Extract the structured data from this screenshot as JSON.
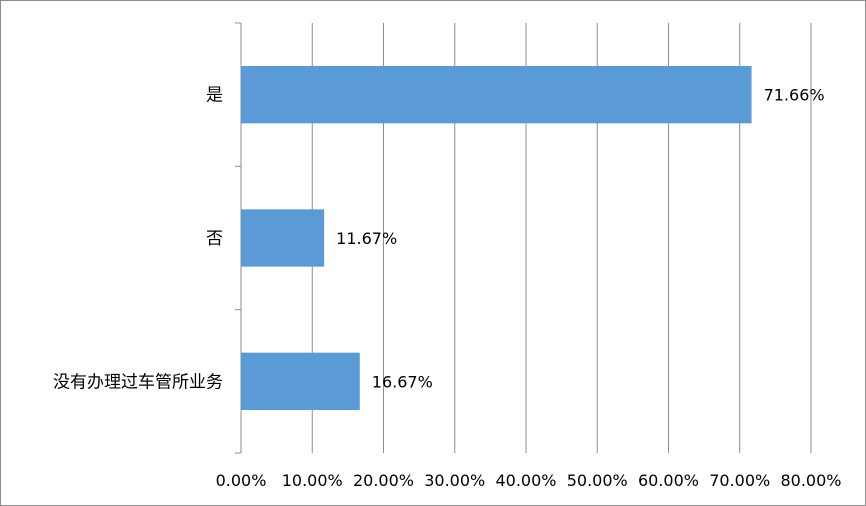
{
  "chart_data": {
    "type": "bar",
    "orientation": "horizontal",
    "categories": [
      "是",
      "否",
      "没有办理过车管所业务"
    ],
    "values": [
      71.66,
      11.67,
      16.67
    ],
    "data_labels": [
      "71.66%",
      "11.67%",
      "16.67%"
    ],
    "x_ticks": [
      "0.00%",
      "10.00%",
      "20.00%",
      "30.00%",
      "40.00%",
      "50.00%",
      "60.00%",
      "70.00%",
      "80.00%"
    ],
    "xlim": [
      0,
      80
    ],
    "title": "",
    "xlabel": "",
    "ylabel": "",
    "grid": "vertical",
    "legend": "none",
    "bar_color": "#5B9BD5",
    "grid_color": "#8c8c8c"
  }
}
